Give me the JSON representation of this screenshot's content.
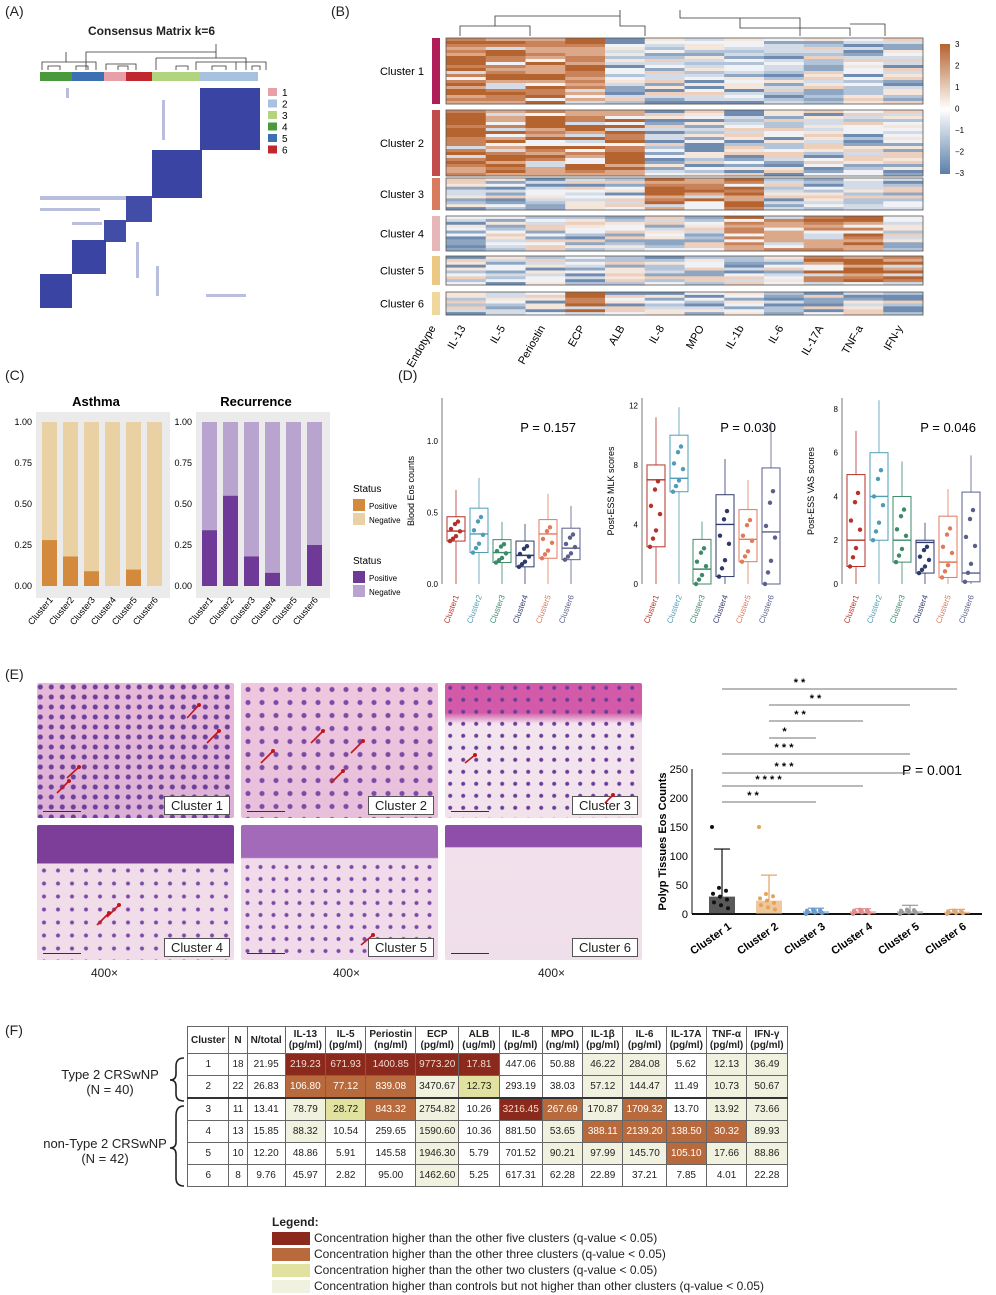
{
  "panels": {
    "a": {
      "letter": "(A)",
      "title": "Consensus Matrix k=6",
      "legend": [
        {
          "id": "1",
          "color": "#e8a0a8"
        },
        {
          "id": "2",
          "color": "#a7c1e0"
        },
        {
          "id": "3",
          "color": "#b2d47e"
        },
        {
          "id": "4",
          "color": "#4a9a3c"
        },
        {
          "id": "5",
          "color": "#3f6fb3"
        },
        {
          "id": "6",
          "color": "#c0282e"
        }
      ]
    },
    "b": {
      "letter": "(B)",
      "clusters": [
        "Cluster 1",
        "Cluster 2",
        "Cluster 3",
        "Cluster 4",
        "Cluster 5",
        "Cluster 6"
      ],
      "columns": [
        "Endotype",
        "IL-13",
        "IL-5",
        "Periostin",
        "ECP",
        "ALB",
        "IL-8",
        "MPO",
        "IL-1b",
        "IL-6",
        "IL-17A",
        "TNF-a",
        "IFN-y"
      ],
      "scale_ticks": [
        "3",
        "2",
        "1",
        "0",
        "−1",
        "−2",
        "−3"
      ],
      "endotype_colors": [
        "#b01e5a",
        "#c24b4b",
        "#d97b5f",
        "#e6b6b8",
        "#ecc983",
        "#f0d89c"
      ]
    },
    "c": {
      "letter": "(C)",
      "asthma": {
        "title": "Asthma",
        "positive": [
          0.28,
          0.18,
          0.09,
          0,
          0.1,
          0
        ]
      },
      "recurrence": {
        "title": "Recurrence",
        "positive": [
          0.34,
          0.55,
          0.18,
          0.08,
          0,
          0.25
        ]
      },
      "yticks": [
        "1.00",
        "0.75",
        "0.50",
        "0.25",
        "0.00"
      ],
      "categories": [
        "Cluster1",
        "Cluster2",
        "Cluster3",
        "Cluster4",
        "Cluster5",
        "Cluster6"
      ],
      "legend_title": "Status",
      "legend_positive": "Positive",
      "legend_negative": "Negative",
      "asthma_colors": {
        "positive": "#d48a3c",
        "negative": "#ead1a4"
      },
      "recurrence_colors": {
        "positive": "#6f3a97",
        "negative": "#b9a4cf"
      }
    },
    "d": {
      "letter": "(D)",
      "plots": [
        {
          "ylabel": "Blood Eos counts",
          "p": "P = 0.157",
          "yticks": [
            "0.0",
            "0.5",
            "1.0"
          ],
          "ymax": 1.3,
          "box": [
            [
              0.3,
              0.37,
              0.47
            ],
            [
              0.22,
              0.35,
              0.53
            ],
            [
              0.15,
              0.22,
              0.31
            ],
            [
              0.12,
              0.2,
              0.3
            ],
            [
              0.18,
              0.35,
              0.45
            ],
            [
              0.17,
              0.25,
              0.39
            ]
          ]
        },
        {
          "ylabel": "Post-ESS MLK scores",
          "p": "P = 0.030",
          "yticks": [
            "0",
            "4",
            "8",
            "12"
          ],
          "ymax": 12.5,
          "box": [
            [
              2.5,
              7,
              8
            ],
            [
              6.2,
              7.1,
              10
            ],
            [
              0,
              1,
              3
            ],
            [
              0.5,
              4,
              6
            ],
            [
              1.5,
              3,
              5
            ],
            [
              0,
              3.5,
              7.8
            ]
          ]
        },
        {
          "ylabel": "Post-ESS VAS scores",
          "p": "P = 0.046",
          "yticks": [
            "0",
            "2",
            "4",
            "6",
            "8"
          ],
          "ymax": 8.5,
          "box": [
            [
              0.8,
              2,
              5
            ],
            [
              2,
              4,
              6
            ],
            [
              1,
              2,
              4
            ],
            [
              0.5,
              1.9,
              2
            ],
            [
              0.3,
              1,
              3.1
            ],
            [
              0.1,
              0.5,
              4.2
            ]
          ]
        }
      ],
      "categories": [
        "Cluster1",
        "Cluster2",
        "Cluster3",
        "Cluster4",
        "Cluster5",
        "Cluster6"
      ],
      "colors": [
        "#b5312b",
        "#4f9cb8",
        "#3d8a6a",
        "#2e3a6b",
        "#e07a5c",
        "#5a5f8c"
      ]
    },
    "e": {
      "letter": "(E)",
      "images": [
        "Cluster 1",
        "Cluster 2",
        "Cluster 3",
        "Cluster 4",
        "Cluster 5",
        "Cluster 6"
      ],
      "magnification": "400×",
      "ylabel": "Polyp Tissues Eos Counts",
      "p": "P = 0.001",
      "yticks": [
        "0",
        "50",
        "100",
        "150",
        "200",
        "250"
      ],
      "categories": [
        "Cluster 1",
        "Cluster 2",
        "Cluster 3",
        "Cluster 4",
        "Cluster 5",
        "Cluster 6"
      ],
      "bar_means": [
        30,
        23,
        5,
        5,
        5,
        4
      ],
      "bar_sd": [
        112,
        67,
        10,
        9,
        15,
        8
      ],
      "bar_colors": [
        "#222222",
        "#e3a35a",
        "#6a9bd1",
        "#e58a8a",
        "#9a9a9a",
        "#e0a877"
      ],
      "sig": [
        "* *",
        "* *",
        "* *",
        "*",
        "* * *",
        "* * *",
        "* * * *",
        "* *"
      ]
    },
    "f": {
      "letter": "(F)",
      "groups": [
        {
          "name": "Type 2 CRSwNP",
          "n": "(N = 40)"
        },
        {
          "name": "non-Type 2 CRSwNP",
          "n": "(N = 42)"
        }
      ],
      "headers": [
        "Cluster",
        "N",
        "N/total",
        "IL-13\n(pg/ml)",
        "IL-5\n(pg/ml)",
        "Periostin\n(ng/ml)",
        "ECP\n(pg/ml)",
        "ALB\n(ug/ml)",
        "IL-8\n(pg/ml)",
        "MPO\n(ng/ml)",
        "IL-1β\n(pg/ml)",
        "IL-6\n(pg/ml)",
        "IL-17A\n(pg/ml)",
        "TNF-α\n(pg/ml)",
        "IFN-γ\n(pg/ml)"
      ],
      "rows": [
        [
          "1",
          "18",
          "21.95",
          "219.23",
          "671.93",
          "1400.85",
          "9773.20",
          "17.81",
          "447.06",
          "50.88",
          "46.22",
          "284.08",
          "5.62",
          "12.13",
          "36.49"
        ],
        [
          "2",
          "22",
          "26.83",
          "106.80",
          "77.12",
          "839.08",
          "3470.67",
          "12.73",
          "293.19",
          "38.03",
          "57.12",
          "144.47",
          "11.49",
          "10.73",
          "50.67"
        ],
        [
          "3",
          "11",
          "13.41",
          "78.79",
          "28.72",
          "843.32",
          "2754.82",
          "10.26",
          "3216.45",
          "267.69",
          "170.87",
          "1709.32",
          "13.70",
          "13.92",
          "73.66"
        ],
        [
          "4",
          "13",
          "15.85",
          "88.32",
          "10.54",
          "259.65",
          "1590.60",
          "10.36",
          "881.50",
          "53.65",
          "388.11",
          "2139.20",
          "138.50",
          "30.32",
          "89.93"
        ],
        [
          "5",
          "10",
          "12.20",
          "48.86",
          "5.91",
          "145.58",
          "1946.30",
          "5.79",
          "701.52",
          "90.21",
          "97.99",
          "145.70",
          "105.10",
          "17.66",
          "88.86"
        ],
        [
          "6",
          "8",
          "9.76",
          "45.97",
          "2.82",
          "95.00",
          "1462.60",
          "5.25",
          "617.31",
          "62.28",
          "22.89",
          "37.21",
          "7.85",
          "4.01",
          "22.28"
        ]
      ],
      "shading": [
        [
          "",
          "",
          "",
          "h5",
          "h5",
          "h5",
          "h5",
          "h5",
          "",
          "",
          "hc",
          "hc",
          "",
          "hc",
          "hc"
        ],
        [
          "",
          "",
          "",
          "h3",
          "h3",
          "h3",
          "hc",
          "h2",
          "",
          "",
          "hc",
          "hc",
          "",
          "hc",
          "hc"
        ],
        [
          "",
          "",
          "",
          "hc",
          "h2",
          "h3",
          "hc",
          "",
          "h5",
          "h3",
          "hc",
          "h3",
          "",
          "hc",
          "hc"
        ],
        [
          "",
          "",
          "",
          "hc",
          "",
          "",
          "hc",
          "",
          "",
          "hc",
          "h3",
          "h3",
          "h3",
          "h3",
          "hc"
        ],
        [
          "",
          "",
          "",
          "",
          "",
          "",
          "hc",
          "",
          "",
          "hc",
          "hc",
          "hc",
          "h3",
          "hc",
          "hc"
        ],
        [
          "",
          "",
          "",
          "",
          "",
          "",
          "hc",
          "",
          "",
          "",
          "",
          "",
          "",
          "",
          ""
        ]
      ],
      "legend_title": "Legend:",
      "legend": [
        {
          "cls": "h5",
          "text": "Concentration higher than the other five clusters (q-value < 0.05)"
        },
        {
          "cls": "h3",
          "text": "Concentration higher than the other three clusters (q-value < 0.05)"
        },
        {
          "cls": "h2",
          "text": "Concentration higher than the other two clusters (q-value < 0.05)"
        },
        {
          "cls": "hc",
          "text": "Concentration higher than controls but not higher than other clusters (q-value < 0.05)"
        }
      ]
    }
  }
}
